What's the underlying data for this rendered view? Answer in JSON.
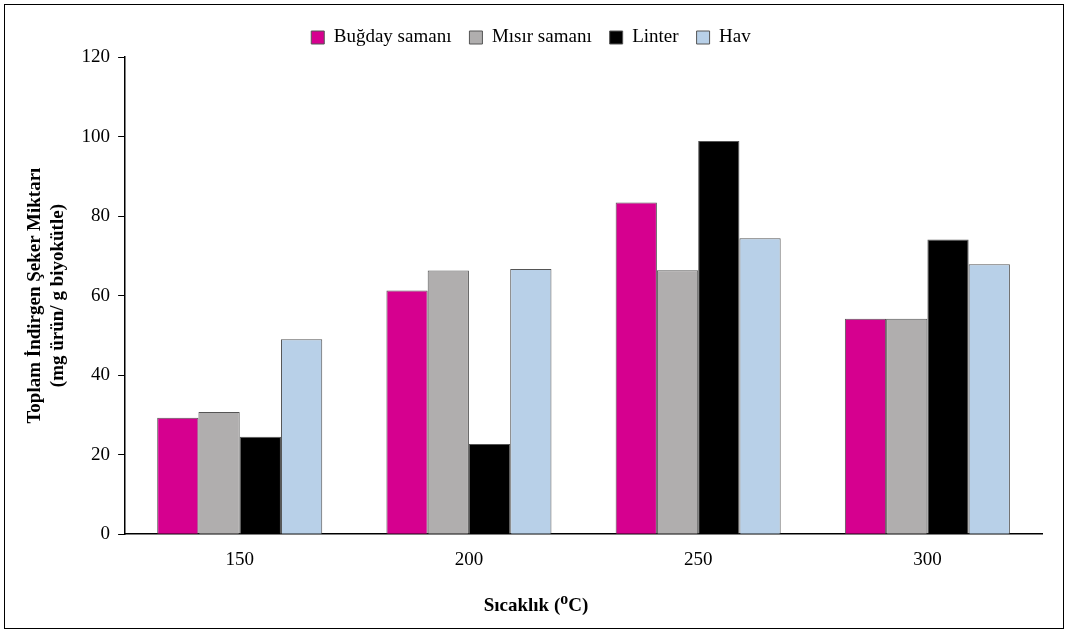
{
  "chart_data": {
    "type": "bar",
    "xlabel": "Sıcaklık ($^{o}$C)",
    "ylabel": "Toplam İndirgen Şeker Miktarı\n(mg ürün/ g biyokütle)",
    "categories": [
      "150",
      "200",
      "250",
      "300"
    ],
    "series": [
      {
        "name": "Buğday samanı",
        "color": "#d6008f",
        "values": [
          29.3,
          61.3,
          83.4,
          54.2
        ]
      },
      {
        "name": "Mısır samanı",
        "color": "#b0aeae",
        "values": [
          30.7,
          66.3,
          66.4,
          54.2
        ]
      },
      {
        "name": "Linter",
        "color": "#000000",
        "values": [
          24.5,
          22.7,
          98.9,
          74.1
        ]
      },
      {
        "name": "Hav",
        "color": "#b8d0e8",
        "values": [
          49,
          66.7,
          74.4,
          67.9
        ]
      }
    ],
    "ylim": [
      0,
      120
    ],
    "yticks": [
      0,
      20,
      40,
      60,
      80,
      100,
      120
    ],
    "grid": false,
    "legend": "top"
  }
}
